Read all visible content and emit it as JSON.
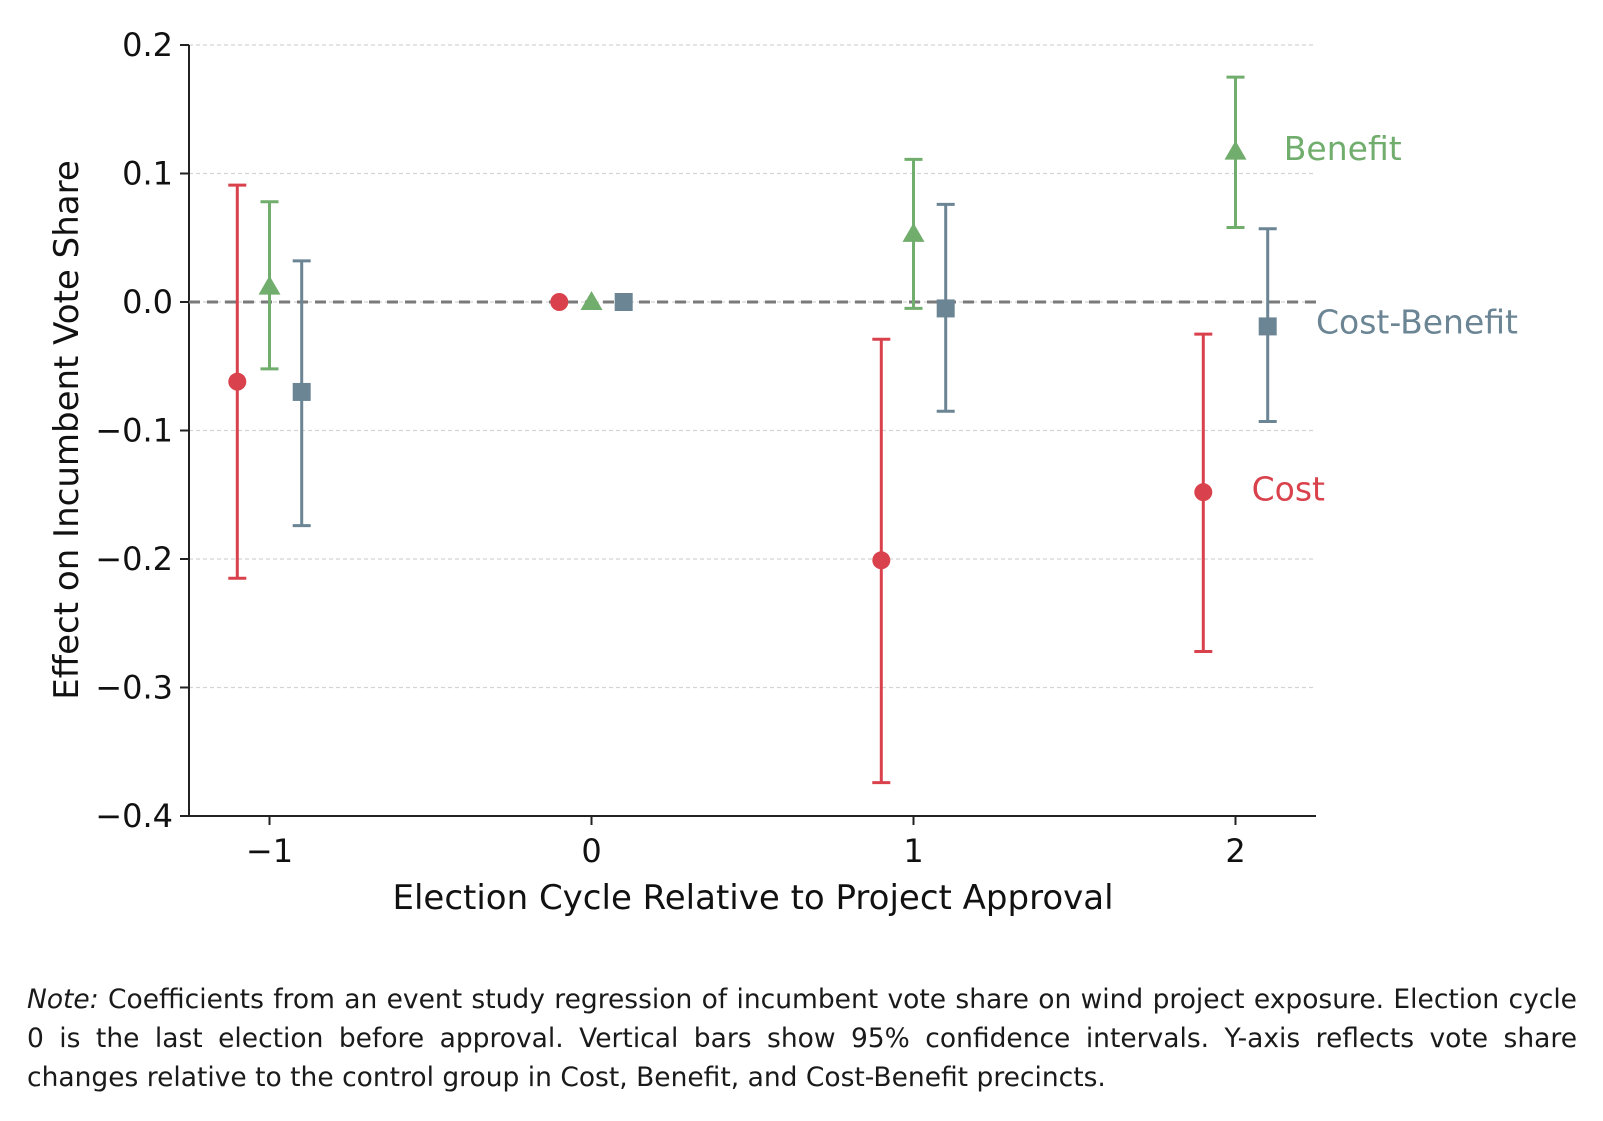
{
  "chart_data": {
    "type": "scatter",
    "subtype": "coefficient plot with error bars",
    "title": "",
    "xlabel": "Election Cycle Relative to Project Approval",
    "ylabel": "Effect on Incumbent Vote Share",
    "xlim": [
      -1.25,
      2.25
    ],
    "ylim": [
      -0.4,
      0.2
    ],
    "x_ticks": [
      -1,
      0,
      1,
      2
    ],
    "x_tick_labels": [
      "−1",
      "0",
      "1",
      "2"
    ],
    "y_ticks": [
      0.2,
      0.1,
      0.0,
      -0.1,
      -0.2,
      -0.3,
      -0.4
    ],
    "y_tick_labels": [
      "0.2",
      "0.1",
      "0.0",
      "−0.1",
      "−0.2",
      "−0.3",
      "−0.4"
    ],
    "grid": true,
    "reference_line": 0.0,
    "series": [
      {
        "name": "Cost",
        "color": "#d9424c",
        "marker": "circle",
        "offset": -0.1,
        "x": [
          -1,
          0,
          1,
          2
        ],
        "y": [
          -0.062,
          0.0,
          -0.201,
          -0.148
        ],
        "ci_low": [
          -0.215,
          null,
          -0.374,
          -0.272
        ],
        "ci_high": [
          0.091,
          null,
          -0.029,
          -0.025
        ]
      },
      {
        "name": "Benefit",
        "color": "#71ad6c",
        "marker": "triangle",
        "offset": 0.0,
        "x": [
          -1,
          0,
          1,
          2
        ],
        "y": [
          0.012,
          0.0,
          0.053,
          0.117
        ],
        "ci_low": [
          -0.052,
          null,
          -0.005,
          0.058
        ],
        "ci_high": [
          0.078,
          null,
          0.111,
          0.175
        ]
      },
      {
        "name": "Cost-Benefit",
        "color": "#6b8594",
        "marker": "square",
        "offset": 0.1,
        "x": [
          -1,
          0,
          1,
          2
        ],
        "y": [
          -0.07,
          0.0,
          -0.005,
          -0.019
        ],
        "ci_low": [
          -0.174,
          null,
          -0.085,
          -0.093
        ],
        "ci_high": [
          0.032,
          null,
          0.076,
          0.057
        ]
      }
    ],
    "annotations": [
      {
        "text": "Benefit",
        "series": "Benefit",
        "x": 2.15,
        "y": 0.119
      },
      {
        "text": "Cost-Benefit",
        "series": "Cost-Benefit",
        "x": 2.25,
        "y": -0.016
      },
      {
        "text": "Cost",
        "series": "Cost",
        "x": 2.05,
        "y": -0.146
      }
    ]
  },
  "note": {
    "label": "Note:",
    "text": " Coefficients from an event study regression of incumbent vote share on wind project exposure. Election cycle 0 is the last election before approval. Vertical bars show 95% confidence intervals. Y-axis reflects vote share changes relative to the control group in Cost, Benefit, and Cost-Benefit precincts."
  }
}
